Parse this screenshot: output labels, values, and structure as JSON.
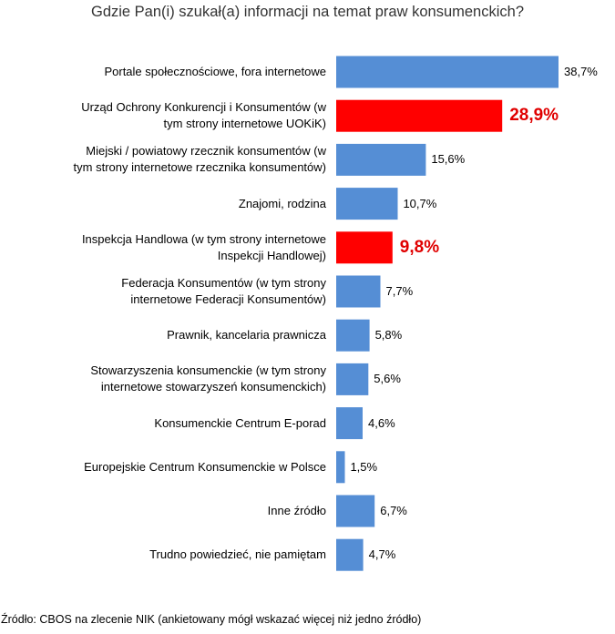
{
  "chart_data": {
    "type": "bar",
    "orientation": "horizontal",
    "title": "Gdzie Pan(i) szukał(a) informacji na temat praw konsumenckich?",
    "categories": [
      "Portale społecznościowe, fora internetowe",
      "Urząd Ochrony Konkurencji i Konsumentów (w tym strony internetowe UOKiK)",
      "Miejski / powiatowy rzecznik konsumentów (w tym strony internetowe rzecznika konsumentów)",
      "Znajomi, rodzina",
      "Inspekcja Handlowa (w tym strony internetowe Inspekcji Handlowej)",
      "Federacja Konsumentów (w tym strony internetowe Federacji Konsumentów)",
      "Prawnik, kancelaria prawnicza",
      "Stowarzyszenia konsumenckie (w tym strony internetowe stowarzyszeń konsumenckich)",
      "Konsumenckie Centrum E-porad",
      "Europejskie Centrum Konsumenckie w Polsce",
      "Inne źródło",
      "Trudno powiedzieć, nie pamiętam"
    ],
    "category_lines": [
      [
        "Portale społecznościowe, fora internetowe"
      ],
      [
        "Urząd Ochrony Konkurencji i Konsumentów (w",
        "tym strony internetowe UOKiK)"
      ],
      [
        "Miejski / powiatowy rzecznik konsumentów (w",
        "tym strony internetowe rzecznika konsumentów)"
      ],
      [
        "Znajomi, rodzina"
      ],
      [
        "Inspekcja Handlowa (w tym strony internetowe",
        "Inspekcji Handlowej)"
      ],
      [
        "Federacja Konsumentów (w tym strony",
        "internetowe Federacji Konsumentów)"
      ],
      [
        "Prawnik, kancelaria prawnicza"
      ],
      [
        "Stowarzyszenia konsumenckie (w tym strony",
        "internetowe stowarzyszeń konsumenckich)"
      ],
      [
        "Konsumenckie Centrum E-porad"
      ],
      [
        "Europejskie Centrum Konsumenckie w Polsce"
      ],
      [
        "Inne źródło"
      ],
      [
        "Trudno powiedzieć, nie pamiętam"
      ]
    ],
    "values": [
      38.7,
      28.9,
      15.6,
      10.7,
      9.8,
      7.7,
      5.8,
      5.6,
      4.6,
      1.5,
      6.7,
      4.7
    ],
    "value_labels": [
      "38,7%",
      "28,9%",
      "15,6%",
      "10,7%",
      "9,8%",
      "7,7%",
      "5,8%",
      "5,6%",
      "4,6%",
      "1,5%",
      "6,7%",
      "4,7%"
    ],
    "highlighted": [
      false,
      true,
      false,
      false,
      true,
      false,
      false,
      false,
      false,
      false,
      false,
      false
    ],
    "colors": {
      "bar": "#558ED5",
      "highlight": "#FF0000",
      "highlight_label": "#E00000"
    },
    "xlim": [
      0,
      40
    ],
    "grid": false,
    "xlabel": "",
    "ylabel": ""
  },
  "source_note": "Źródło: CBOS na zlecenie NIK (ankietowany mógł wskazać więcej niż jedno źródło)"
}
